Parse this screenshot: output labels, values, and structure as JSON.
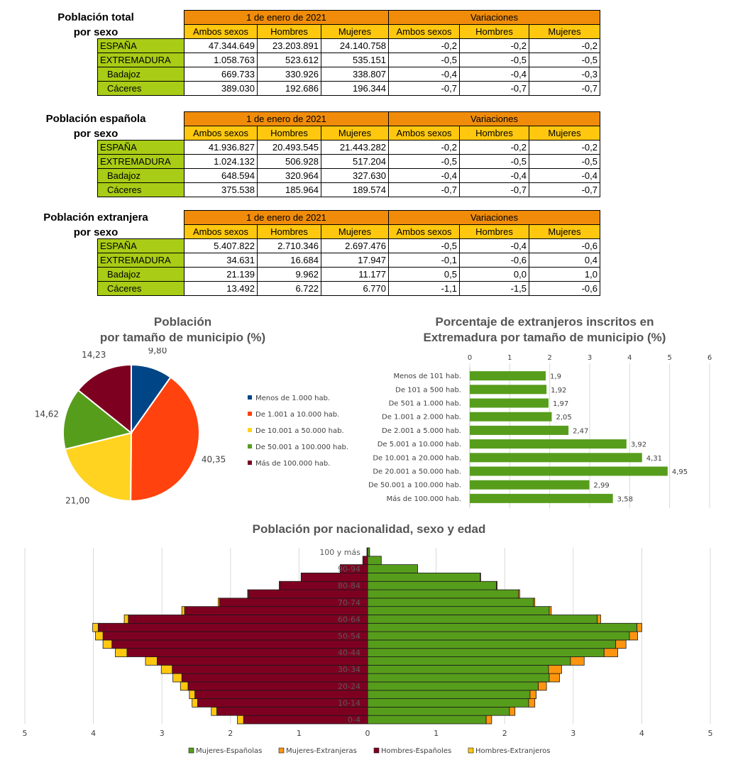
{
  "tables": [
    {
      "title_line1": "Población total",
      "title_line2": "por sexo",
      "group1": "1 de enero de 2021",
      "group2": "Variaciones",
      "columns": [
        "Ambos sexos",
        "Hombres",
        "Mujeres",
        "Ambos sexos",
        "Hombres",
        "Mujeres"
      ],
      "rows": [
        {
          "label": "ESPAÑA",
          "values": [
            "47.344.649",
            "23.203.891",
            "24.140.758",
            "-0,2",
            "-0,2",
            "-0,2"
          ]
        },
        {
          "label": "EXTREMADURA",
          "values": [
            "1.058.763",
            "523.612",
            "535.151",
            "-0,5",
            "-0,5",
            "-0,5"
          ]
        },
        {
          "label": "Badajoz",
          "values": [
            "669.733",
            "330.926",
            "338.807",
            "-0,4",
            "-0,4",
            "-0,3"
          ]
        },
        {
          "label": "Cáceres",
          "values": [
            "389.030",
            "192.686",
            "196.344",
            "-0,7",
            "-0,7",
            "-0,7"
          ]
        }
      ]
    },
    {
      "title_line1": "Población española",
      "title_line2": "por sexo",
      "group1": "1 de enero de 2021",
      "group2": "Variaciones",
      "columns": [
        "Ambos sexos",
        "Hombres",
        "Mujeres",
        "Ambos sexos",
        "Hombres",
        "Mujeres"
      ],
      "rows": [
        {
          "label": "ESPAÑA",
          "values": [
            "41.936.827",
            "20.493.545",
            "21.443.282",
            "-0,2",
            "-0,2",
            "-0,2"
          ]
        },
        {
          "label": "EXTREMADURA",
          "values": [
            "1.024.132",
            "506.928",
            "517.204",
            "-0,5",
            "-0,5",
            "-0,5"
          ]
        },
        {
          "label": "Badajoz",
          "values": [
            "648.594",
            "320.964",
            "327.630",
            "-0,4",
            "-0,4",
            "-0,4"
          ]
        },
        {
          "label": "Cáceres",
          "values": [
            "375.538",
            "185.964",
            "189.574",
            "-0,7",
            "-0,7",
            "-0,7"
          ]
        }
      ]
    },
    {
      "title_line1": "Población extranjera",
      "title_line2": "por sexo",
      "group1": "1 de enero de 2021",
      "group2": "Variaciones",
      "columns": [
        "Ambos sexos",
        "Hombres",
        "Mujeres",
        "Ambos sexos",
        "Hombres",
        "Mujeres"
      ],
      "rows": [
        {
          "label": "ESPAÑA",
          "values": [
            "5.407.822",
            "2.710.346",
            "2.697.476",
            "-0,5",
            "-0,4",
            "-0,6"
          ]
        },
        {
          "label": "EXTREMADURA",
          "values": [
            "34.631",
            "16.684",
            "17.947",
            "-0,1",
            "-0,6",
            "0,4"
          ]
        },
        {
          "label": "Badajoz",
          "values": [
            "21.139",
            "9.962",
            "11.177",
            "0,5",
            "0,0",
            "1,0"
          ]
        },
        {
          "label": "Cáceres",
          "values": [
            "13.492",
            "6.722",
            "6.770",
            "-1,1",
            "-1,5",
            "-0,6"
          ]
        }
      ]
    }
  ],
  "chart_data": [
    {
      "type": "pie",
      "title": "Población por tamaño de municipio (%)",
      "title_line1": "Población",
      "title_line2": "por tamaño de municipio (%)",
      "categories": [
        "Menos de 1.000 hab.",
        "De 1.001 a 10.000 hab.",
        "De 10.001 a 50.000 hab.",
        "De 50.001 a 100.000 hab.",
        "Más de 100.000 hab."
      ],
      "values": [
        9.8,
        40.35,
        21.0,
        14.62,
        14.23
      ],
      "value_labels": [
        "9,80",
        "40,35",
        "21,00",
        "14,62",
        "14,23"
      ],
      "colors": [
        "#004586",
        "#ff420e",
        "#ffd320",
        "#579d1c",
        "#7e0021"
      ],
      "legend": "right"
    },
    {
      "type": "bar",
      "orientation": "horizontal",
      "title": "Porcentaje de extranjeros inscritos en Extremadura por tamaño de municipio (%)",
      "title_line1": "Porcentaje de extranjeros inscritos en",
      "title_line2": "Extremadura por tamaño de municipio (%)",
      "categories": [
        "Menos de 101 hab.",
        "De 101 a 500 hab.",
        "De 501 a 1.000 hab.",
        "De 1.001 a 2.000 hab.",
        "De 2.001 a 5.000 hab.",
        "De 5.001 a 10.000 hab.",
        "De 10.001 a 20.000 hab.",
        "De 20.001 a 50.000 hab.",
        "De 50.001 a 100.000 hab.",
        "Más de 100.000 hab."
      ],
      "values": [
        1.9,
        1.92,
        1.97,
        2.05,
        2.47,
        3.92,
        4.31,
        4.95,
        2.99,
        3.58
      ],
      "value_labels": [
        "1,9",
        "1,92",
        "1,97",
        "2,05",
        "2,47",
        "3,92",
        "4,31",
        "4,95",
        "2,99",
        "3,58"
      ],
      "xlim": [
        0,
        6
      ],
      "xticks": [
        "0",
        "1",
        "2",
        "3",
        "4",
        "5",
        "6"
      ],
      "color": "#579d1c",
      "grid": true
    },
    {
      "type": "bar",
      "orientation": "horizontal-stacked-pyramid",
      "title": "Población por nacionalidad, sexo y edad",
      "categories": [
        "0-4",
        "5-9",
        "10-14",
        "15-19",
        "20-24",
        "25-29",
        "30-34",
        "35-39",
        "40-44",
        "45-49",
        "50-54",
        "55-59",
        "60-64",
        "65-69",
        "70-74",
        "75-79",
        "80-84",
        "85-89",
        "90-94",
        "95-99",
        "100 y más"
      ],
      "shown_category_labels": [
        "0-4",
        "10-14",
        "20-24",
        "30-34",
        "40-44",
        "50-54",
        "60-64",
        "70-74",
        "80-84",
        "90-94",
        "100 y más"
      ],
      "xlim": [
        -5,
        5
      ],
      "xticks": [
        "5",
        "4",
        "3",
        "2",
        "1",
        "0",
        "1",
        "2",
        "3",
        "4",
        "5"
      ],
      "series": [
        {
          "name": "Mujeres-Españolas",
          "color": "#579d1c",
          "values": [
            1.73,
            2.07,
            2.35,
            2.37,
            2.49,
            2.65,
            2.64,
            2.96,
            3.45,
            3.62,
            3.82,
            3.93,
            3.35,
            2.65,
            2.42,
            2.2,
            1.88,
            1.64,
            0.73,
            0.2,
            0.03
          ]
        },
        {
          "name": "Mujeres-Extranjeras",
          "color": "#ff950e",
          "values": [
            0.08,
            0.08,
            0.09,
            0.09,
            0.12,
            0.15,
            0.19,
            0.2,
            0.2,
            0.15,
            0.12,
            0.07,
            0.05,
            0.03,
            0.02,
            0.02,
            0.01,
            0.01,
            0.0,
            0.0,
            0.0
          ]
        },
        {
          "name": "Hombres-Españoles",
          "color": "#7e0021",
          "values": [
            1.81,
            2.2,
            2.48,
            2.52,
            2.62,
            2.71,
            2.85,
            3.07,
            3.51,
            3.73,
            3.86,
            3.93,
            3.49,
            2.67,
            2.16,
            1.74,
            1.28,
            0.97,
            0.4,
            0.07,
            0.01
          ]
        },
        {
          "name": "Hombres-Extranjeros",
          "color": "#ffc80f",
          "values": [
            0.09,
            0.08,
            0.08,
            0.08,
            0.11,
            0.13,
            0.16,
            0.17,
            0.17,
            0.13,
            0.11,
            0.08,
            0.06,
            0.04,
            0.02,
            0.01,
            0.01,
            0.0,
            0.0,
            0.0,
            0.0
          ]
        }
      ],
      "legend": "bottom"
    }
  ]
}
